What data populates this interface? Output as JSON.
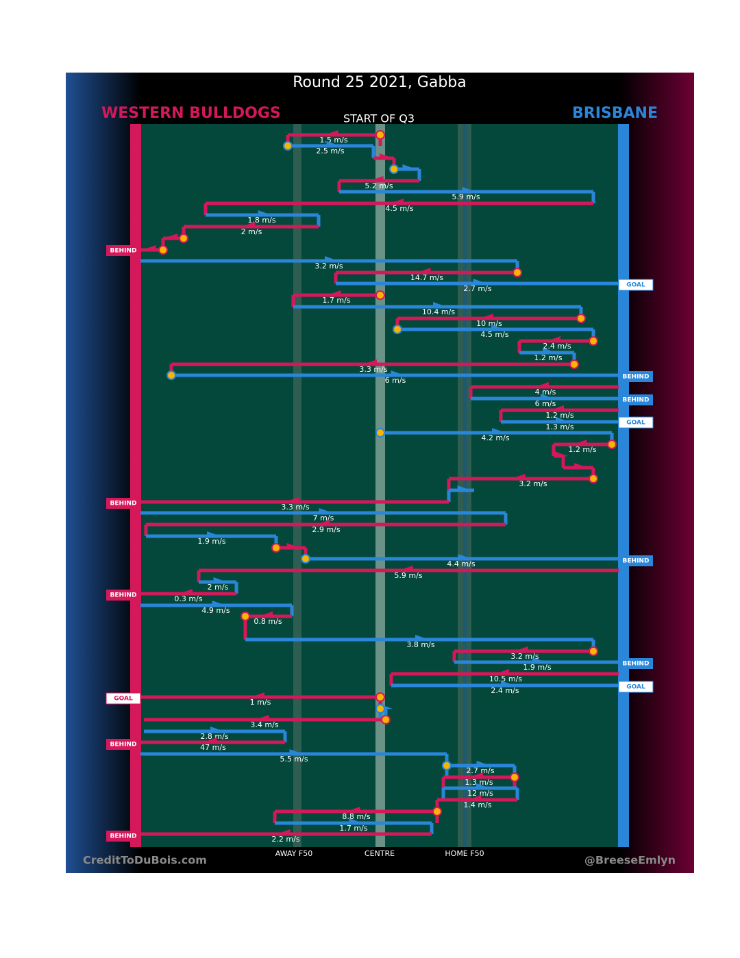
{
  "title": "Round 25 2021, Gabba",
  "teams": {
    "left": "WESTERN BULLDOGS",
    "right": "BRISBANE"
  },
  "period": "START OF Q3",
  "zones": [
    "AWAY F50",
    "CENTRE",
    "HOME F50"
  ],
  "credits": {
    "left": "CreditToDuBois.com",
    "right": "@BreeseEmlyn"
  },
  "speeds": [
    "1.5 m/s",
    "2.5 m/s",
    "5.2 m/s",
    "5.9 m/s",
    "4.5 m/s",
    "1.8 m/s",
    "2 m/s",
    "3.2 m/s",
    "14.7 m/s",
    "2.7 m/s",
    "1.7 m/s",
    "10.4 m/s",
    "10 m/s",
    "4.5 m/s",
    "2.4 m/s",
    "1.2 m/s",
    "3.3 m/s",
    "6 m/s",
    "4 m/s",
    "6 m/s",
    "1.2 m/s",
    "1.3 m/s",
    "4.2 m/s",
    "1.2 m/s",
    "3.2 m/s",
    "3.3 m/s",
    "7 m/s",
    "2.9 m/s",
    "1.9 m/s",
    "4.4 m/s",
    "5.9 m/s",
    "2 m/s",
    "0.3 m/s",
    "4.9 m/s",
    "0.8 m/s",
    "3.8 m/s",
    "3.2 m/s",
    "1.9 m/s",
    "10.5 m/s",
    "2.4 m/s",
    "1 m/s",
    "3.4 m/s",
    "2.8 m/s",
    "47 m/s",
    "5.5 m/s",
    "2.7 m/s",
    "1.3 m/s",
    "12 m/s",
    "1.4 m/s",
    "8.8 m/s",
    "1.7 m/s",
    "2.2 m/s"
  ],
  "outcomes": [
    "BEHIND",
    "GOAL",
    "BEHIND",
    "BEHIND",
    "GOAL",
    "BEHIND",
    "BEHIND",
    "BEHIND",
    "BEHIND",
    "GOAL",
    "GOAL",
    "BEHIND",
    "BEHIND"
  ]
}
